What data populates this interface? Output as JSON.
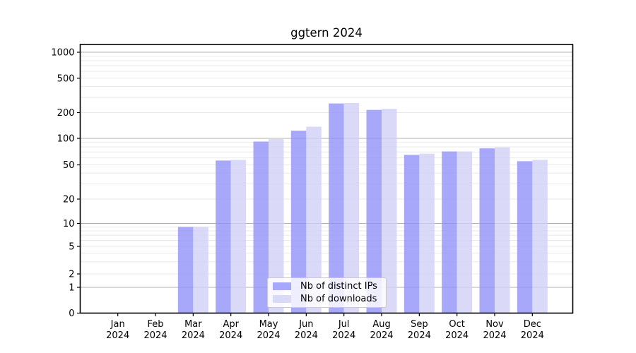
{
  "chart_data": {
    "type": "bar",
    "title": "ggtern 2024",
    "categories": [
      "Jan 2024",
      "Feb 2024",
      "Mar 2024",
      "Apr 2024",
      "May 2024",
      "Jun 2024",
      "Jul 2024",
      "Aug 2024",
      "Sep 2024",
      "Oct 2024",
      "Nov 2024",
      "Dec 2024"
    ],
    "series": [
      {
        "name": "Nb of distinct IPs",
        "color": "#9292fa",
        "values": [
          0,
          0,
          9,
          56,
          92,
          123,
          255,
          215,
          65,
          71,
          77,
          55
        ]
      },
      {
        "name": "Nb of downloads",
        "color": "#d1d1f6",
        "values": [
          0,
          0,
          9,
          57,
          98,
          137,
          258,
          222,
          67,
          71,
          79,
          57
        ]
      }
    ],
    "bar_alpha": 0.8,
    "xlabel": "",
    "ylabel": "",
    "yscale": "pseudo-log",
    "y_ticks": [
      0,
      1,
      2,
      5,
      10,
      20,
      50,
      100,
      200,
      500,
      1000
    ],
    "ylim": [
      0,
      1230
    ],
    "grid": {
      "major_values": [
        1,
        10,
        100,
        1000
      ],
      "major_color": "#b0b0b0",
      "minor_color": "#e9e9e9"
    },
    "legend_position": "lower center",
    "text_color": "#000000",
    "spine_color": "#000000"
  }
}
